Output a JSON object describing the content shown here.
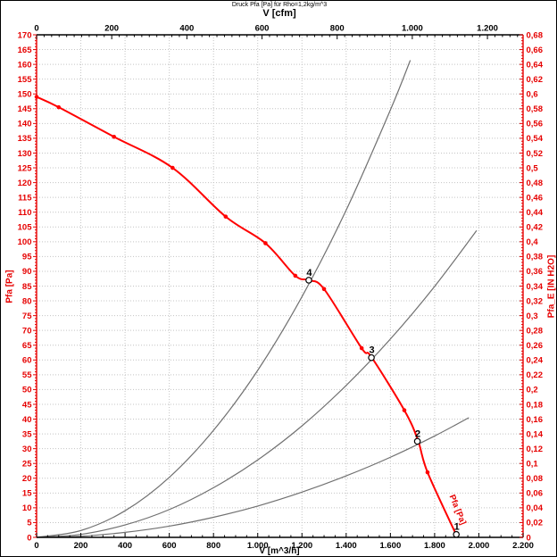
{
  "chart_data": {
    "type": "line",
    "title": "Druck Pfa [Pa] für Rho=1,2kg/m^3",
    "colors": {
      "axis_red": "#e60000",
      "axis_black": "#000000",
      "fan_curve": "#ff0000",
      "system_curve": "#707070",
      "grid": "#c4c4c4",
      "background": "#ffffff"
    },
    "axes": {
      "top": {
        "label": "V [cfm]",
        "min": 0,
        "max": 1295,
        "major_step": 200,
        "minor_step": 20,
        "cfm_to_m3h": 1.69901,
        "tick_labels": [
          "0",
          "200",
          "400",
          "600",
          "800",
          "1.000",
          "1.200"
        ]
      },
      "bottom": {
        "label": "V [m^3/h]",
        "min": 0,
        "max": 2200,
        "major_step": 200,
        "minor_step": 50,
        "tick_labels": [
          "0",
          "200",
          "400",
          "600",
          "800",
          "1.000",
          "1.200",
          "1.400",
          "1.600",
          "1.800",
          "2.000",
          "2.200"
        ]
      },
      "left": {
        "label": "Pfa [Pa]",
        "min": 0,
        "max": 170,
        "major_step": 5,
        "minor_step": 1,
        "tick_labels": [
          "0",
          "5",
          "10",
          "15",
          "20",
          "25",
          "30",
          "35",
          "40",
          "45",
          "50",
          "55",
          "60",
          "65",
          "70",
          "75",
          "80",
          "85",
          "90",
          "95",
          "100",
          "105",
          "110",
          "115",
          "120",
          "125",
          "130",
          "135",
          "140",
          "145",
          "150",
          "155",
          "160",
          "165",
          "170"
        ]
      },
      "right": {
        "label": "Pfa_E [IN H2O]",
        "min": 0,
        "max": 0.68,
        "major_step": 0.02,
        "minor_step": 0.004,
        "tick_labels": [
          "0",
          "0,02",
          "0,04",
          "0,06",
          "0,08",
          "0,1",
          "0,12",
          "0,14",
          "0,16",
          "0,18",
          "0,2",
          "0,22",
          "0,24",
          "0,26",
          "0,28",
          "0,3",
          "0,32",
          "0,34",
          "0,36",
          "0,38",
          "0,4",
          "0,42",
          "0,44",
          "0,46",
          "0,48",
          "0,5",
          "0,52",
          "0,54",
          "0,56",
          "0,58",
          "0,6",
          "0,62",
          "0,64",
          "0,66",
          "0,68"
        ]
      }
    },
    "grid": {
      "x_step_m3h": 200,
      "y_step_pa": 5,
      "style": "dotted"
    },
    "fan_curve": {
      "name": "Pfa [Pa]",
      "curve_label": "Pfa [Pa]",
      "points": [
        [
          0,
          149
        ],
        [
          100,
          145.5
        ],
        [
          350,
          135.5
        ],
        [
          615,
          125
        ],
        [
          855,
          108.5
        ],
        [
          1035,
          99.5
        ],
        [
          1170,
          88.5
        ],
        [
          1231,
          87
        ],
        [
          1300,
          84
        ],
        [
          1470,
          64
        ],
        [
          1514,
          61
        ],
        [
          1663,
          43
        ],
        [
          1724,
          33
        ],
        [
          1768,
          22
        ],
        [
          1900,
          0.5
        ]
      ],
      "marker_points": [
        [
          0,
          149
        ],
        [
          100,
          145.5
        ],
        [
          350,
          135.5
        ],
        [
          615,
          125
        ],
        [
          855,
          108.5
        ],
        [
          1035,
          99.5
        ],
        [
          1170,
          88.5
        ],
        [
          1300,
          84
        ],
        [
          1470,
          64
        ],
        [
          1663,
          43
        ],
        [
          1768,
          22
        ]
      ]
    },
    "system_curves": [
      {
        "id": "system-curve-through-4",
        "points": [
          [
            0,
            0
          ],
          [
            200,
            2.3
          ],
          [
            400,
            9
          ],
          [
            600,
            20.3
          ],
          [
            800,
            36.2
          ],
          [
            1000,
            56.5
          ],
          [
            1200,
            81.4
          ],
          [
            1400,
            110.7
          ],
          [
            1600,
            144.6
          ],
          [
            1690,
            161.4
          ]
        ]
      },
      {
        "id": "system-curve-through-3",
        "points": [
          [
            0,
            0
          ],
          [
            200,
            1
          ],
          [
            400,
            4.2
          ],
          [
            600,
            9.4
          ],
          [
            800,
            16.8
          ],
          [
            1000,
            26.2
          ],
          [
            1200,
            37.7
          ],
          [
            1400,
            51.4
          ],
          [
            1600,
            67.1
          ],
          [
            1800,
            84.9
          ],
          [
            1990,
            103.8
          ]
        ]
      },
      {
        "id": "system-curve-through-2",
        "points": [
          [
            0,
            0
          ],
          [
            200,
            0.4
          ],
          [
            400,
            1.7
          ],
          [
            600,
            3.8
          ],
          [
            800,
            6.8
          ],
          [
            1000,
            10.6
          ],
          [
            1200,
            15.3
          ],
          [
            1400,
            20.8
          ],
          [
            1600,
            27.1
          ],
          [
            1800,
            34.3
          ],
          [
            1955,
            40.5
          ]
        ]
      }
    ],
    "operating_points": [
      {
        "label": "4",
        "v": 1231,
        "p": 87
      },
      {
        "label": "3",
        "v": 1514,
        "p": 60.8
      },
      {
        "label": "2",
        "v": 1722,
        "p": 32.5
      },
      {
        "label": "1",
        "v": 1898,
        "p": 1
      }
    ]
  }
}
